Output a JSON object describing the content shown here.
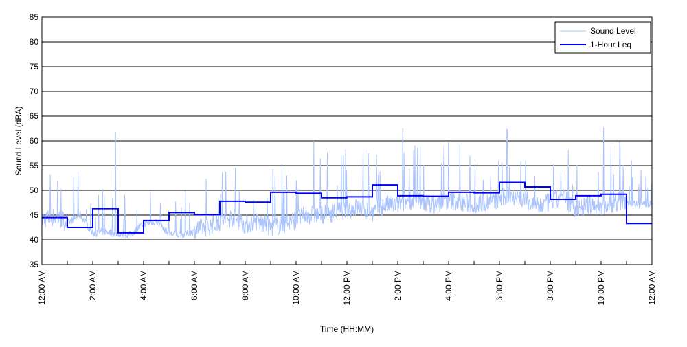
{
  "chart_data": {
    "type": "line",
    "title": "",
    "xlabel": "Time (HH:MM)",
    "ylabel": "Sound Level (dBA)",
    "ylim": [
      35,
      85
    ],
    "yticks": [
      35,
      40,
      45,
      50,
      55,
      60,
      65,
      70,
      75,
      80,
      85
    ],
    "xlim_hours": [
      0,
      24
    ],
    "xticks": [
      {
        "hour": 0,
        "label": "12:00 AM"
      },
      {
        "hour": 2,
        "label": "2:00 AM"
      },
      {
        "hour": 4,
        "label": "4:00 AM"
      },
      {
        "hour": 6,
        "label": "6:00 AM"
      },
      {
        "hour": 8,
        "label": "8:00 AM"
      },
      {
        "hour": 10,
        "label": "10:00 AM"
      },
      {
        "hour": 12,
        "label": "12:00 PM"
      },
      {
        "hour": 14,
        "label": "2:00 PM"
      },
      {
        "hour": 16,
        "label": "4:00 PM"
      },
      {
        "hour": 18,
        "label": "6:00 PM"
      },
      {
        "hour": 20,
        "label": "8:00 PM"
      },
      {
        "hour": 22,
        "label": "10:00 PM"
      },
      {
        "hour": 24,
        "label": "12:00 AM"
      }
    ],
    "grid": "horizontal",
    "legend_position": "top-right",
    "series": [
      {
        "name": "Sound Level",
        "color": "#aac4ff",
        "sample_interval_hours": 0.5,
        "values": [
          43.5,
          44,
          43,
          45,
          41,
          41.5,
          41,
          40.8,
          43,
          43.5,
          41,
          40.7,
          41.5,
          42,
          43,
          44,
          42.5,
          43,
          42,
          42.5,
          43.5,
          44.5,
          44.5,
          45,
          45.5,
          46,
          45,
          46.5,
          46.5,
          47.5,
          47,
          46.5,
          47.5,
          47,
          46.5,
          47,
          47.5,
          48.5,
          47.5,
          46,
          47,
          48,
          45.5,
          46.5,
          46,
          47,
          47.5,
          47
        ],
        "peaks": [
          {
            "hour": 2.9,
            "value": 61.8
          },
          {
            "hour": 14.2,
            "value": 62.5
          },
          {
            "hour": 18.3,
            "value": 62.3
          },
          {
            "hour": 22.1,
            "value": 62.7
          },
          {
            "hour": 10.7,
            "value": 60
          }
        ]
      },
      {
        "name": "1-Hour Leq",
        "color": "#0000ff",
        "step": true,
        "values": [
          44.5,
          42.5,
          46.3,
          41.4,
          43.9,
          45.5,
          45.1,
          47.8,
          47.6,
          49.6,
          49.4,
          48.5,
          48.7,
          51.1,
          48.9,
          48.8,
          49.6,
          49.5,
          51.6,
          50.7,
          48.2,
          48.9,
          49.2,
          43.3
        ]
      }
    ]
  }
}
